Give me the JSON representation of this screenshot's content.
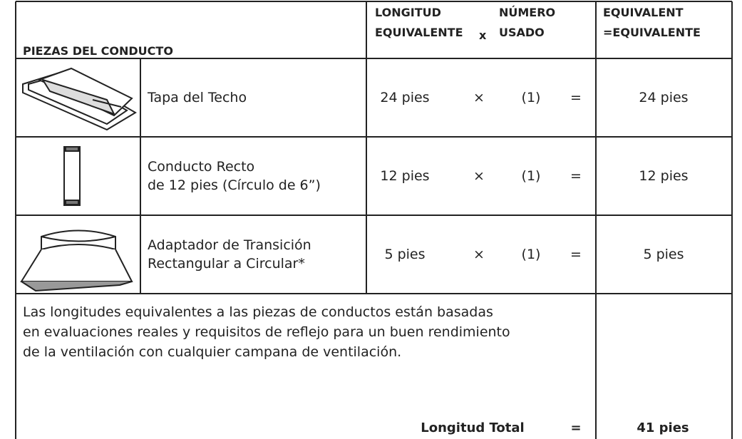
{
  "header": {
    "parts": "PIEZAS DEL CONDUCTO",
    "length": "LONGITUD\nEQUIVALENTE",
    "times": "x",
    "number": "NÚMERO\nUSADO",
    "equivalent": "EQUIVALENT\n=EQUIVALENTE"
  },
  "rows": [
    {
      "name": "Tapa del Techo",
      "length": "24 pies",
      "times": "×",
      "number": "(1)",
      "equals": "=",
      "result": "24 pies"
    },
    {
      "name": "Conducto Recto\nde 12 pies (Círculo de 6”)",
      "length": "12 pies",
      "times": "×",
      "number": "(1)",
      "equals": "=",
      "result": "12 pies"
    },
    {
      "name": "Adaptador de Transición\nRectangular a Circular*",
      "length": "5 pies",
      "times": "×",
      "number": "(1)",
      "equals": "=",
      "result": "5 pies"
    }
  ],
  "footer": {
    "note": "Las longitudes equivalentes a las piezas de conductos están basadas\nen evaluaciones reales y requisitos de reflejo para un buen rendimiento\nde la ventilación con cualquier campana de ventilación.",
    "total_label": "Longitud Total",
    "equals": "=",
    "total": "41 pies"
  }
}
